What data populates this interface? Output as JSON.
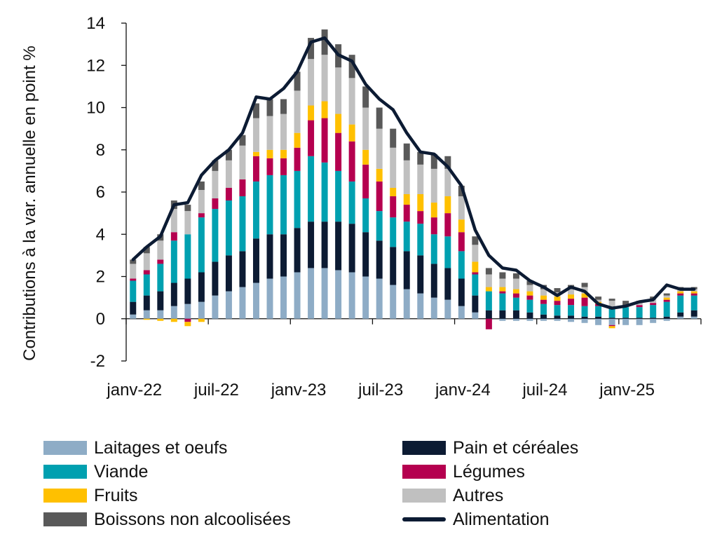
{
  "chart_data": {
    "type": "bar",
    "stacked": true,
    "title": "",
    "xlabel": "",
    "ylabel": "Contributions à la var. annuelle en point %",
    "ylim": [
      -2,
      14
    ],
    "yticks": [
      "14",
      "12",
      "10",
      "8",
      "6",
      "4",
      "2",
      "0",
      "-2"
    ],
    "ytick_values": [
      14,
      12,
      10,
      8,
      6,
      4,
      2,
      0,
      -2
    ],
    "grid": false,
    "legend_position": "bottom",
    "x_ticks": [
      "janv-22",
      "juil-22",
      "janv-23",
      "juil-23",
      "janv-24",
      "juil-24",
      "janv-25"
    ],
    "x_tick_indices": [
      0,
      6,
      12,
      18,
      24,
      30,
      36
    ],
    "categories": [
      "janv-22",
      "févr-22",
      "mars-22",
      "avr-22",
      "mai-22",
      "juin-22",
      "juil-22",
      "août-22",
      "sept-22",
      "oct-22",
      "nov-22",
      "déc-22",
      "janv-23",
      "févr-23",
      "mars-23",
      "avr-23",
      "mai-23",
      "juin-23",
      "juil-23",
      "août-23",
      "sept-23",
      "oct-23",
      "nov-23",
      "déc-23",
      "janv-24",
      "févr-24",
      "mars-24",
      "avr-24",
      "mai-24",
      "juin-24",
      "juil-24",
      "août-24",
      "sept-24",
      "oct-24",
      "nov-24",
      "déc-24",
      "janv-25",
      "févr-25",
      "mars-25",
      "avr-25",
      "mai-25",
      "juin-25"
    ],
    "series": [
      {
        "name": "Laitages et oeufs",
        "color": "#8eacc6",
        "values": [
          0.2,
          0.4,
          0.4,
          0.6,
          0.7,
          0.8,
          1.1,
          1.3,
          1.5,
          1.7,
          1.9,
          2.0,
          2.2,
          2.4,
          2.4,
          2.3,
          2.2,
          2.0,
          1.9,
          1.6,
          1.4,
          1.2,
          1.0,
          0.9,
          0.6,
          0.3,
          0.0,
          -0.1,
          -0.1,
          -0.1,
          -0.1,
          -0.1,
          -0.15,
          -0.2,
          -0.3,
          -0.3,
          -0.3,
          -0.3,
          -0.2,
          -0.1,
          0.1,
          0.1
        ]
      },
      {
        "name": "Pain et céréales",
        "color": "#0c1b33",
        "values": [
          0.6,
          0.7,
          0.9,
          1.1,
          1.2,
          1.4,
          1.6,
          1.7,
          1.7,
          2.1,
          2.1,
          2.0,
          2.1,
          2.2,
          2.2,
          2.3,
          2.3,
          2.1,
          1.8,
          1.8,
          1.8,
          1.8,
          1.6,
          1.5,
          1.3,
          0.8,
          0.4,
          0.4,
          0.4,
          0.3,
          0.2,
          0.15,
          0.15,
          0.1,
          0.1,
          0.05,
          0.05,
          0.05,
          0.05,
          0.1,
          0.2,
          0.3
        ]
      },
      {
        "name": "Viande",
        "color": "#00a0b0",
        "values": [
          1.0,
          1.0,
          1.3,
          2.0,
          2.1,
          2.6,
          2.5,
          2.6,
          2.6,
          2.7,
          2.8,
          2.8,
          2.7,
          3.1,
          2.8,
          2.4,
          2.0,
          1.6,
          1.4,
          1.4,
          1.4,
          1.5,
          1.4,
          1.5,
          1.3,
          1.0,
          0.9,
          0.8,
          0.6,
          0.6,
          0.5,
          0.5,
          0.5,
          0.5,
          0.5,
          0.5,
          0.5,
          0.5,
          0.6,
          0.7,
          0.8,
          0.7
        ]
      },
      {
        "name": "Légumes",
        "color": "#b5004f",
        "values": [
          0.1,
          0.2,
          0.2,
          0.4,
          -0.15,
          0.2,
          0.5,
          0.6,
          0.8,
          1.2,
          0.8,
          0.8,
          1.1,
          1.7,
          2.1,
          1.8,
          1.9,
          1.6,
          1.4,
          1.0,
          0.8,
          0.6,
          0.8,
          1.1,
          0.9,
          0.1,
          -0.5,
          0.1,
          0.2,
          0.2,
          0.2,
          0.2,
          0.3,
          0.4,
          0.1,
          -0.05,
          0.0,
          0.1,
          0.1,
          0.1,
          0.1,
          0.1
        ]
      },
      {
        "name": "Fruits",
        "color": "#ffc000",
        "values": [
          0.0,
          -0.05,
          -0.1,
          -0.15,
          -0.2,
          -0.15,
          0.0,
          0.0,
          0.0,
          0.2,
          0.4,
          0.4,
          0.7,
          0.7,
          0.8,
          0.9,
          0.8,
          0.7,
          0.6,
          0.4,
          0.5,
          0.8,
          0.7,
          0.8,
          0.6,
          0.5,
          0.2,
          0.2,
          0.2,
          0.2,
          0.2,
          0.2,
          0.2,
          0.2,
          0.1,
          -0.1,
          0.0,
          0.0,
          0.0,
          0.1,
          0.1,
          0.1
        ]
      },
      {
        "name": "Autres",
        "color": "#c0c0c0",
        "values": [
          0.7,
          0.8,
          0.9,
          1.1,
          1.1,
          1.1,
          1.3,
          1.3,
          1.6,
          1.6,
          1.6,
          1.7,
          2.0,
          2.2,
          2.2,
          2.2,
          2.2,
          2.0,
          1.9,
          1.9,
          1.6,
          1.4,
          1.6,
          1.3,
          1.1,
          0.8,
          0.6,
          0.4,
          0.5,
          0.3,
          0.3,
          0.2,
          0.3,
          0.3,
          0.1,
          0.3,
          0.1,
          0.1,
          0.2,
          0.1,
          0.1,
          0.1
        ]
      },
      {
        "name": "Boissons non alcoolisées",
        "color": "#595959",
        "values": [
          0.2,
          0.3,
          0.3,
          0.4,
          0.3,
          0.4,
          0.5,
          0.5,
          0.5,
          0.7,
          0.8,
          0.7,
          0.9,
          1.0,
          1.2,
          1.1,
          1.1,
          1.0,
          1.0,
          0.9,
          0.8,
          0.6,
          0.7,
          0.6,
          0.5,
          0.4,
          0.3,
          0.3,
          0.25,
          0.2,
          0.2,
          0.2,
          0.15,
          0.2,
          0.15,
          0.1,
          0.2,
          0.1,
          0.1,
          0.1,
          0.1,
          0.1
        ]
      }
    ],
    "line": {
      "name": "Alimentation",
      "color": "#0c1b33",
      "values": [
        2.8,
        3.4,
        3.9,
        5.4,
        5.5,
        6.8,
        7.5,
        8.0,
        8.8,
        10.5,
        10.4,
        10.9,
        11.7,
        13.1,
        13.3,
        12.5,
        12.2,
        11.1,
        10.4,
        9.9,
        8.8,
        7.9,
        7.8,
        7.2,
        6.3,
        4.2,
        3.0,
        2.4,
        2.3,
        1.8,
        1.5,
        1.1,
        1.5,
        1.3,
        0.7,
        0.5,
        0.6,
        0.8,
        0.9,
        1.6,
        1.4,
        1.4
      ]
    }
  },
  "legend": {
    "items": [
      {
        "label": "Laitages et oeufs",
        "color": "#8eacc6",
        "kind": "box"
      },
      {
        "label": "Pain et céréales",
        "color": "#0c1b33",
        "kind": "box"
      },
      {
        "label": "Viande",
        "color": "#00a0b0",
        "kind": "box"
      },
      {
        "label": "Légumes",
        "color": "#b5004f",
        "kind": "box"
      },
      {
        "label": "Fruits",
        "color": "#ffc000",
        "kind": "box"
      },
      {
        "label": "Autres",
        "color": "#c0c0c0",
        "kind": "box"
      },
      {
        "label": "Boissons non alcoolisées",
        "color": "#595959",
        "kind": "box"
      },
      {
        "label": "Alimentation",
        "color": "#0c1b33",
        "kind": "line"
      }
    ]
  }
}
